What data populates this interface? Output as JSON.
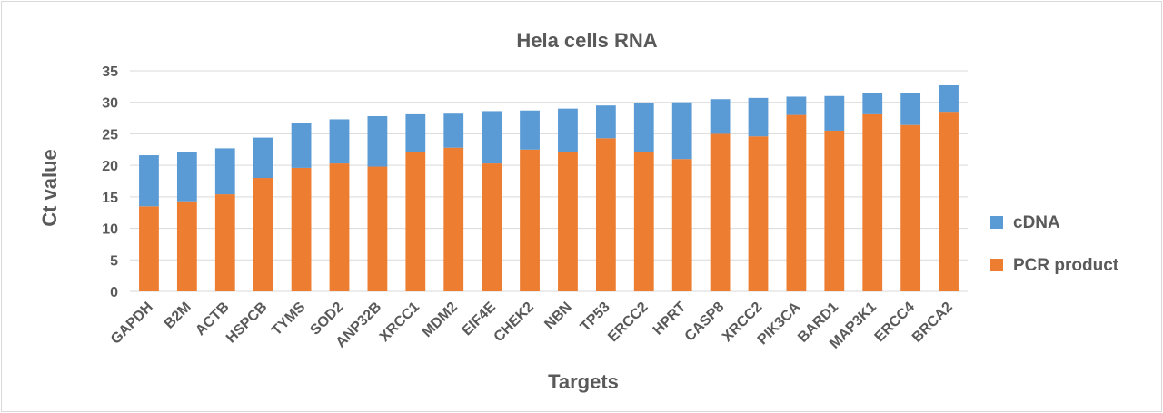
{
  "chart_data": {
    "type": "bar",
    "stacked": true,
    "title": "Hela cells RNA",
    "xlabel": "Targets",
    "ylabel": "Ct value",
    "ylim": [
      0,
      35
    ],
    "yticks": [
      0,
      5,
      10,
      15,
      20,
      25,
      30,
      35
    ],
    "grid": true,
    "legend_position": "right",
    "categories": [
      "GAPDH",
      "B2M",
      "ACTB",
      "HSPCB",
      "TYMS",
      "SOD2",
      "ANP32B",
      "XRCC1",
      "MDM2",
      "EIF4E",
      "CHEK2",
      "NBN",
      "TP53",
      "ERCC2",
      "HPRT",
      "CASP8",
      "XRCC2",
      "PIK3CA",
      "BARD1",
      "MAP3K1",
      "ERCC4",
      "BRCA2"
    ],
    "series": [
      {
        "name": "PCR product",
        "color": "#ed7d31",
        "values": [
          13.5,
          14.3,
          15.4,
          18.0,
          19.6,
          20.3,
          19.8,
          22.1,
          22.8,
          20.3,
          22.5,
          22.1,
          24.3,
          22.1,
          21.0,
          25.0,
          24.6,
          28.0,
          25.5,
          28.1,
          26.4,
          28.5
        ]
      },
      {
        "name": "cDNA",
        "color": "#5b9bd5",
        "values": [
          8.1,
          7.8,
          7.3,
          6.4,
          7.1,
          7.0,
          8.0,
          6.0,
          5.4,
          8.3,
          6.2,
          6.9,
          5.2,
          7.8,
          9.0,
          5.5,
          6.1,
          2.9,
          5.5,
          3.3,
          5.0,
          4.2
        ]
      }
    ]
  }
}
